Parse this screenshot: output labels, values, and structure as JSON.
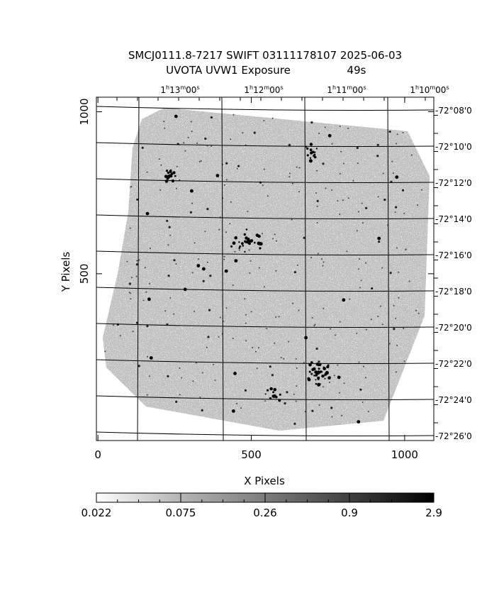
{
  "header": {
    "title_line1": "SMCJ0111.8-7217 SWIFT 03111178107 2025-06-03",
    "title_line2_left": "UVOTA UVW1 Exposure",
    "title_line2_right": "49s"
  },
  "axes": {
    "xlabel": "X Pixels",
    "ylabel": "Y Pixels",
    "x_ticks": [
      {
        "value": 0,
        "label": "0"
      },
      {
        "value": 500,
        "label": "500"
      },
      {
        "value": 1000,
        "label": "1000"
      }
    ],
    "y_ticks": [
      {
        "value": 500,
        "label": "500"
      },
      {
        "value": 1000,
        "label": "1000"
      }
    ],
    "xlim": [
      -5,
      1095
    ],
    "ylim": [
      -15,
      1045
    ]
  },
  "ra_labels": [
    {
      "h": "1",
      "m": "13",
      "s": "00"
    },
    {
      "h": "1",
      "m": "12",
      "s": "00"
    },
    {
      "h": "1",
      "m": "11",
      "s": "00"
    },
    {
      "h": "1",
      "m": "10",
      "s": "00"
    }
  ],
  "dec_labels": [
    "-72°08'0",
    "-72°10'0",
    "-72°12'0",
    "-72°14'0",
    "-72°16'0",
    "-72°18'0",
    "-72°20'0",
    "-72°22'0",
    "-72°24'0",
    "-72°26'0"
  ],
  "colorbar": {
    "tick_labels": [
      "0.022",
      "0.075",
      "0.26",
      "0.9",
      "2.9"
    ],
    "colors": {
      "low": "#ffffff",
      "high": "#000000"
    }
  },
  "image": {
    "sky_color": "#9a9a9a",
    "frame_color": "#000000"
  }
}
